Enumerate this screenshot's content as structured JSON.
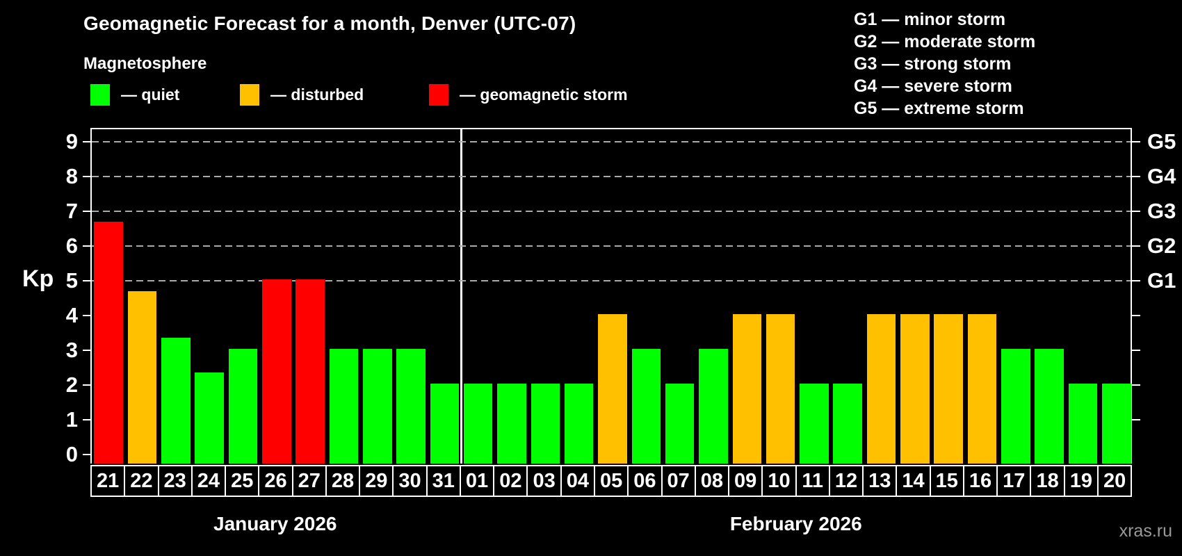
{
  "header": {
    "title": "Geomagnetic Forecast for a month, Denver (UTC-07)",
    "subtitle": "Magnetosphere"
  },
  "legend": {
    "items": [
      {
        "name": "quiet",
        "label": "— quiet",
        "color": "#00ff00"
      },
      {
        "name": "disturbed",
        "label": "— disturbed",
        "color": "#ffc000"
      },
      {
        "name": "storm",
        "label": "— geomagnetic storm",
        "color": "#ff0000"
      }
    ]
  },
  "storm_scale_legend": {
    "lines": [
      "G1 — minor storm",
      "G2 — moderate storm",
      "G3 — strong storm",
      "G4 — severe storm",
      "G5 — extreme storm"
    ]
  },
  "watermark": "xras.ru",
  "chart_data": {
    "type": "bar",
    "title": "Geomagnetic Forecast for a month, Denver (UTC-07)",
    "ylabel": "Kp",
    "ylim": [
      0,
      9.4
    ],
    "yticks": [
      0,
      1,
      2,
      3,
      4,
      5,
      6,
      7,
      8,
      9
    ],
    "gridlines_at": [
      5,
      6,
      7,
      8,
      9
    ],
    "grid": "dashed",
    "legend_position": "top",
    "right_axis": {
      "ticks": [
        1,
        2,
        3,
        4,
        5,
        6,
        7,
        8,
        9
      ],
      "labels": [
        {
          "label": "G1",
          "value": 5
        },
        {
          "label": "G2",
          "value": 6
        },
        {
          "label": "G3",
          "value": 7
        },
        {
          "label": "G4",
          "value": 8
        },
        {
          "label": "G5",
          "value": 9
        }
      ]
    },
    "colors": {
      "quiet": "#00ff00",
      "disturbed": "#ffc000",
      "storm": "#ff0000"
    },
    "months": [
      {
        "label": "January 2026",
        "days": 11
      },
      {
        "label": "February 2026",
        "days": 20
      }
    ],
    "bars": [
      {
        "day": "21",
        "value": 6.67,
        "level": "storm"
      },
      {
        "day": "22",
        "value": 4.67,
        "level": "disturbed"
      },
      {
        "day": "23",
        "value": 3.33,
        "level": "quiet"
      },
      {
        "day": "24",
        "value": 2.33,
        "level": "quiet"
      },
      {
        "day": "25",
        "value": 3,
        "level": "quiet"
      },
      {
        "day": "26",
        "value": 5,
        "level": "storm"
      },
      {
        "day": "27",
        "value": 5,
        "level": "storm"
      },
      {
        "day": "28",
        "value": 3,
        "level": "quiet"
      },
      {
        "day": "29",
        "value": 3,
        "level": "quiet"
      },
      {
        "day": "30",
        "value": 3,
        "level": "quiet"
      },
      {
        "day": "31",
        "value": 2,
        "level": "quiet"
      },
      {
        "day": "01",
        "value": 2,
        "level": "quiet"
      },
      {
        "day": "02",
        "value": 2,
        "level": "quiet"
      },
      {
        "day": "03",
        "value": 2,
        "level": "quiet"
      },
      {
        "day": "04",
        "value": 2,
        "level": "quiet"
      },
      {
        "day": "05",
        "value": 4,
        "level": "disturbed"
      },
      {
        "day": "06",
        "value": 3,
        "level": "quiet"
      },
      {
        "day": "07",
        "value": 2,
        "level": "quiet"
      },
      {
        "day": "08",
        "value": 3,
        "level": "quiet"
      },
      {
        "day": "09",
        "value": 4,
        "level": "disturbed"
      },
      {
        "day": "10",
        "value": 4,
        "level": "disturbed"
      },
      {
        "day": "11",
        "value": 2,
        "level": "quiet"
      },
      {
        "day": "12",
        "value": 2,
        "level": "quiet"
      },
      {
        "day": "13",
        "value": 4,
        "level": "disturbed"
      },
      {
        "day": "14",
        "value": 4,
        "level": "disturbed"
      },
      {
        "day": "15",
        "value": 4,
        "level": "disturbed"
      },
      {
        "day": "16",
        "value": 4,
        "level": "disturbed"
      },
      {
        "day": "17",
        "value": 3,
        "level": "quiet"
      },
      {
        "day": "18",
        "value": 3,
        "level": "quiet"
      },
      {
        "day": "19",
        "value": 2,
        "level": "quiet"
      },
      {
        "day": "20",
        "value": 2,
        "level": "quiet"
      }
    ]
  }
}
